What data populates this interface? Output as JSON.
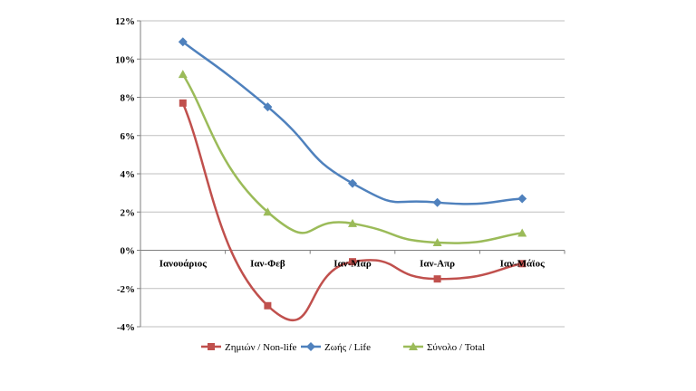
{
  "chart_data": {
    "type": "line",
    "categories": [
      "Ιανουάριος",
      "Ιαν-Φεβ",
      "Ιαν-Μαρ",
      "Ιαν-Απρ",
      "Ιαν-Μάϊος"
    ],
    "ylim": [
      -4,
      12
    ],
    "yticks": [
      -4,
      -2,
      0,
      2,
      4,
      6,
      8,
      10,
      12
    ],
    "y_tick_format": "percent",
    "grid": true,
    "smooth": true,
    "legend_position": "bottom",
    "series": [
      {
        "name": "Ζημιών / Non-life",
        "values": [
          7.7,
          -2.9,
          -0.6,
          -1.5,
          -0.7
        ],
        "color": "#c0504d",
        "marker": "square"
      },
      {
        "name": "Ζωής / Life",
        "values": [
          10.9,
          7.5,
          3.5,
          2.5,
          2.7
        ],
        "color": "#4f81bd",
        "marker": "diamond"
      },
      {
        "name": "Σύνολο / Total",
        "values": [
          9.2,
          2.0,
          1.4,
          0.4,
          0.9
        ],
        "color": "#9bbb59",
        "marker": "triangle"
      }
    ]
  }
}
